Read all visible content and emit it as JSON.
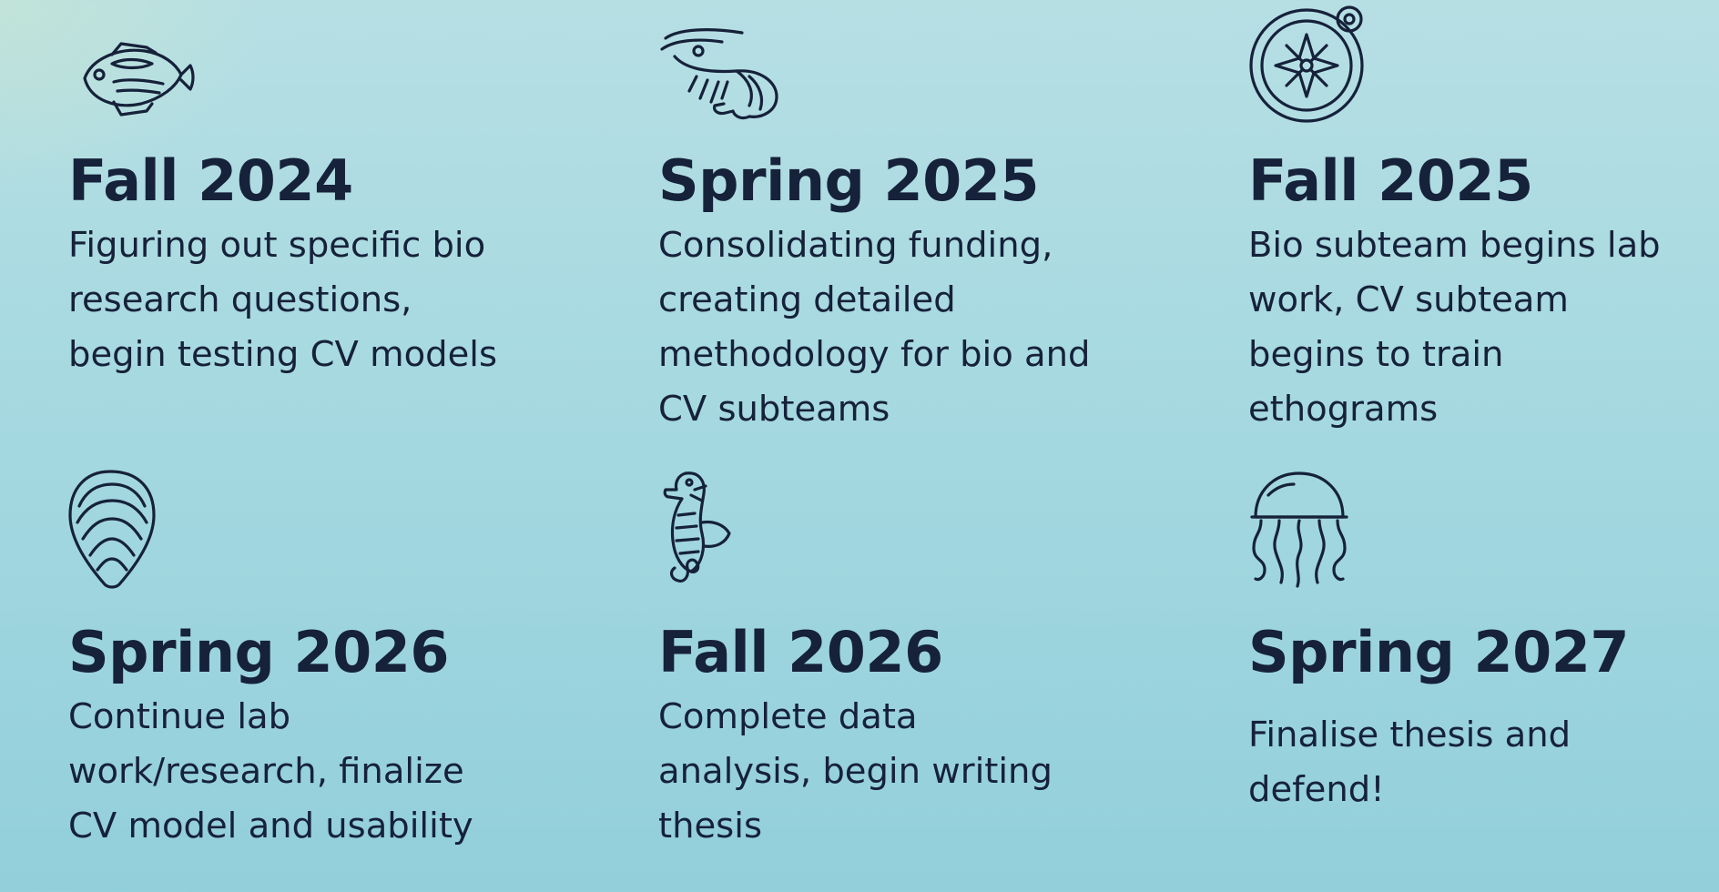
{
  "milestones": [
    {
      "icon": "fish-icon",
      "title": "Fall 2024",
      "description": "Figuring out specific bio\nresearch questions,\nbegin testing CV models"
    },
    {
      "icon": "shrimp-icon",
      "title": "Spring 2025",
      "description": "Consolidating funding,\ncreating detailed\nmethodology for bio and\nCV subteams"
    },
    {
      "icon": "compass-icon",
      "title": "Fall 2025",
      "description": "Bio subteam begins lab\nwork, CV subteam\nbegins to train\nethograms"
    },
    {
      "icon": "shell-icon",
      "title": "Spring 2026",
      "description": "Continue lab\nwork/research, finalize\nCV model and usability"
    },
    {
      "icon": "seahorse-icon",
      "title": "Fall 2026",
      "description": "Complete data\nanalysis, begin writing\nthesis"
    },
    {
      "icon": "jellyfish-icon",
      "title": "Spring 2027",
      "description": "Finalise thesis and\ndefend!"
    }
  ],
  "colors": {
    "text": "#16213a",
    "background_top": "#b6dfe4",
    "background_bottom": "#92cfdb"
  }
}
